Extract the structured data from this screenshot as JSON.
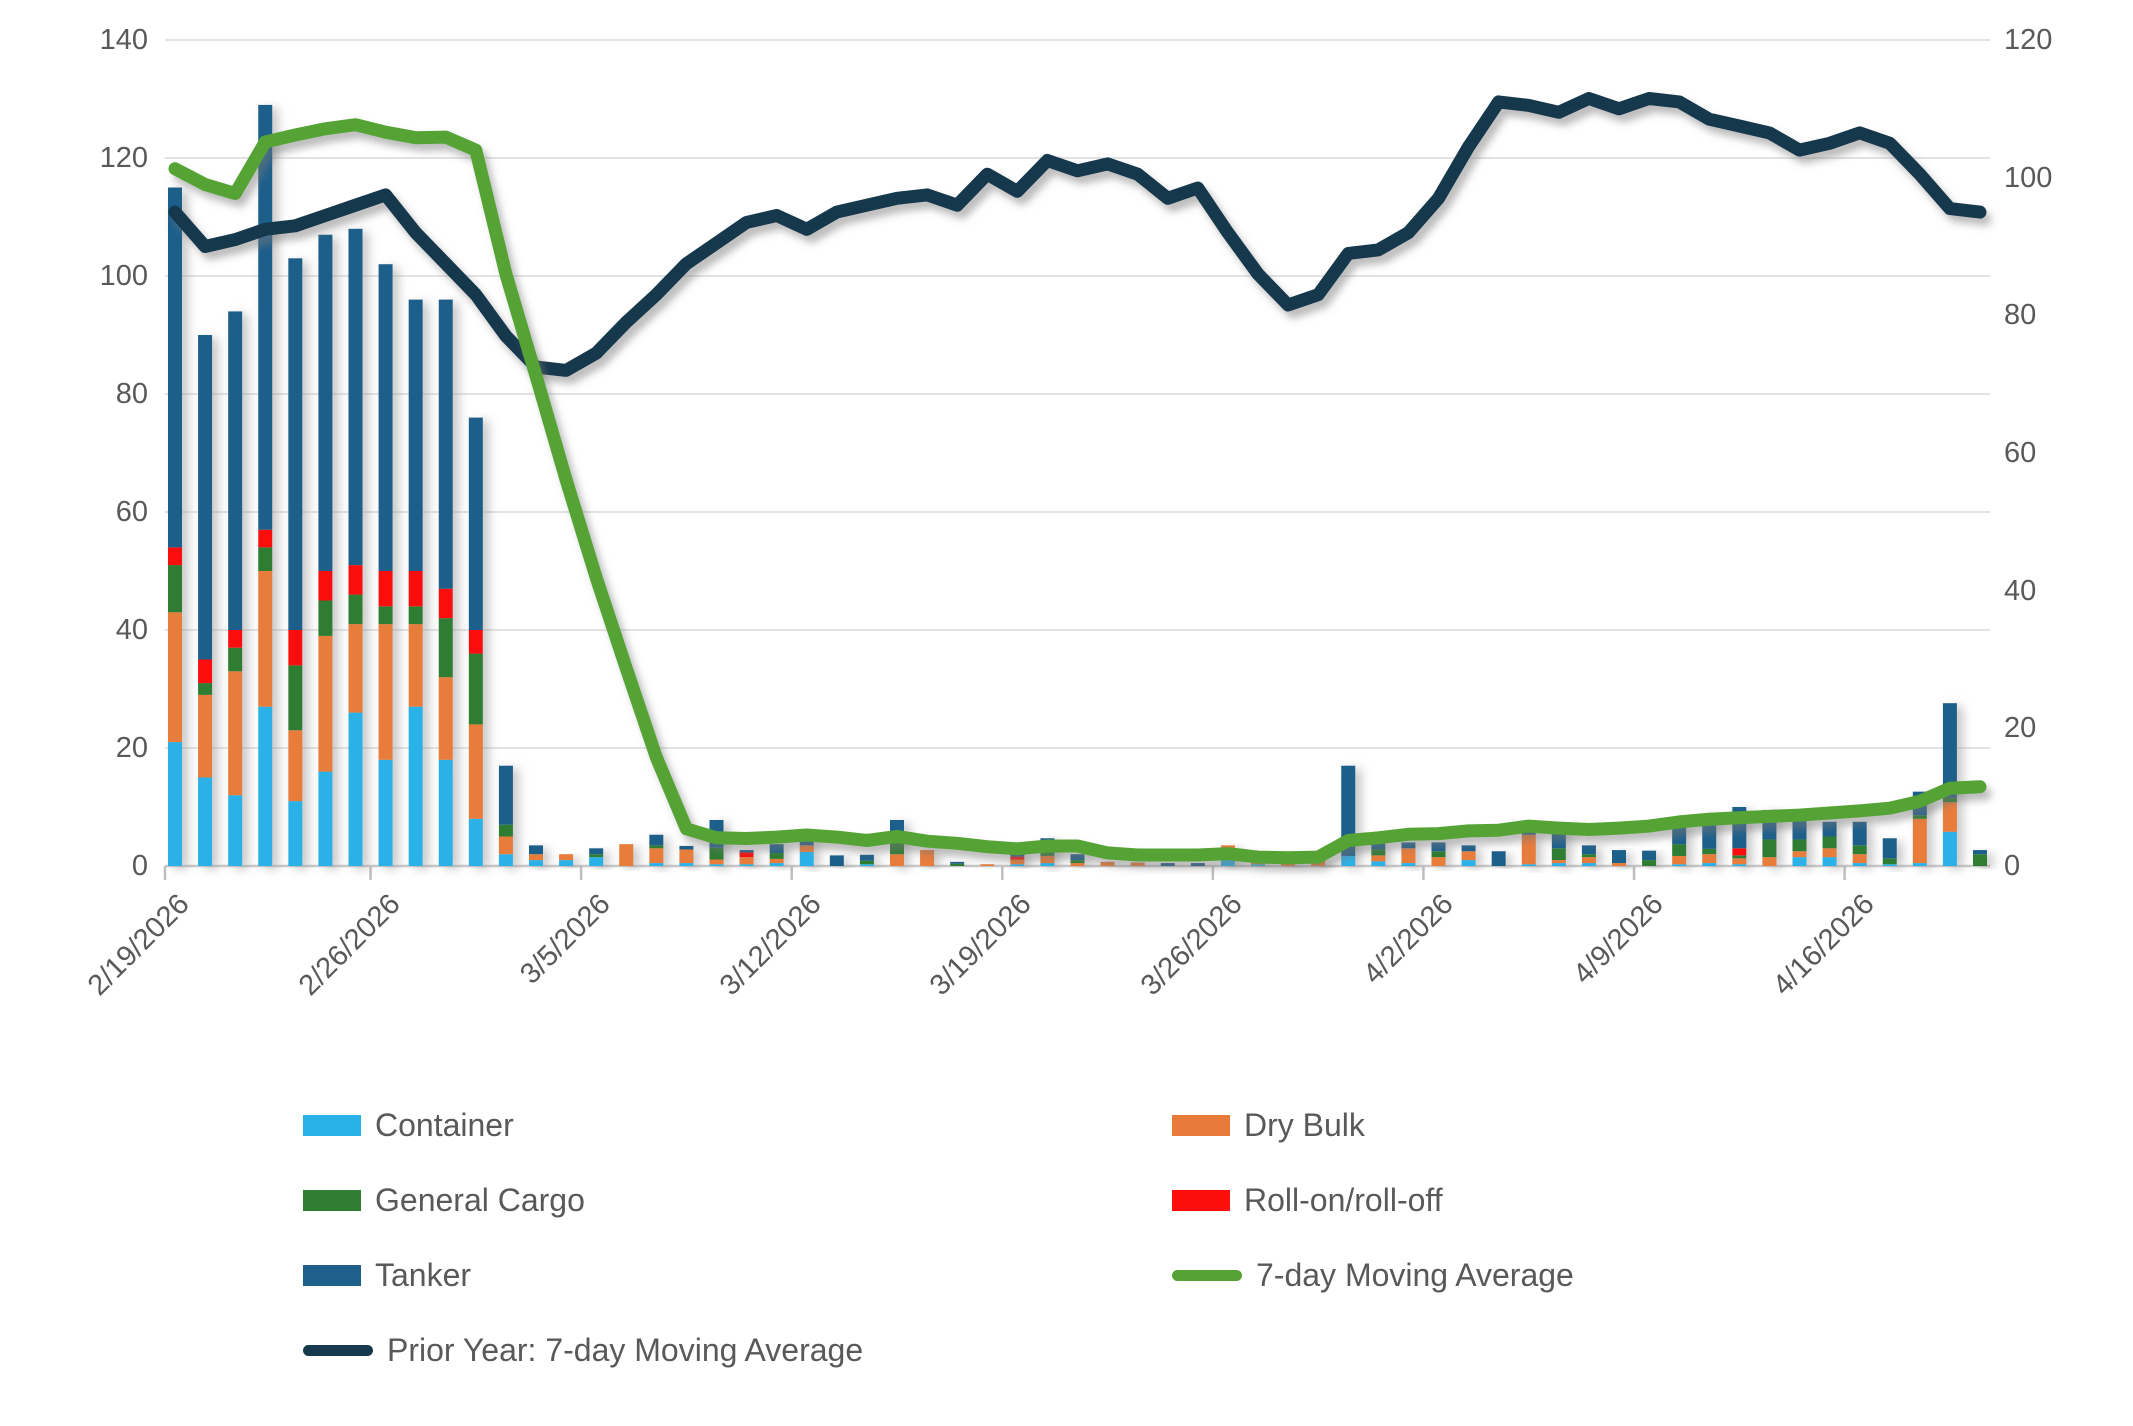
{
  "chart_data": {
    "type": "bar",
    "subtype": "stacked-column-with-lines",
    "title": "",
    "x_dates": [
      "2/19/2026",
      "2/20/2026",
      "2/21/2026",
      "2/22/2026",
      "2/23/2026",
      "2/24/2026",
      "2/25/2026",
      "2/26/2026",
      "2/27/2026",
      "2/28/2026",
      "3/1/2026",
      "3/2/2026",
      "3/3/2026",
      "3/4/2026",
      "3/5/2026",
      "3/6/2026",
      "3/7/2026",
      "3/8/2026",
      "3/9/2026",
      "3/10/2026",
      "3/11/2026",
      "3/12/2026",
      "3/13/2026",
      "3/14/2026",
      "3/15/2026",
      "3/16/2026",
      "3/17/2026",
      "3/18/2026",
      "3/19/2026",
      "3/20/2026",
      "3/21/2026",
      "3/22/2026",
      "3/23/2026",
      "3/24/2026",
      "3/25/2026",
      "3/26/2026",
      "3/27/2026",
      "3/28/2026",
      "3/29/2026",
      "3/30/2026",
      "3/31/2026",
      "4/1/2026",
      "4/2/2026",
      "4/3/2026",
      "4/4/2026",
      "4/5/2026",
      "4/6/2026",
      "4/7/2026",
      "4/8/2026",
      "4/9/2026",
      "4/10/2026",
      "4/11/2026",
      "4/12/2026",
      "4/13/2026",
      "4/14/2026",
      "4/15/2026",
      "4/16/2026",
      "4/17/2026",
      "4/18/2026",
      "4/19/2026",
      "4/20/2026"
    ],
    "x_tick_labels": [
      "2/19/2026",
      "2/26/2026",
      "3/5/2026",
      "3/12/2026",
      "3/19/2026",
      "3/26/2026",
      "4/2/2026",
      "4/9/2026",
      "4/16/2026"
    ],
    "x_tick_every": 7,
    "left_axis": {
      "min": 0,
      "max": 140,
      "ticks": [
        0,
        20,
        40,
        60,
        80,
        100,
        120,
        140
      ]
    },
    "right_axis": {
      "min": 0,
      "max": 120,
      "ticks": [
        0,
        20,
        40,
        60,
        80,
        100,
        120
      ]
    },
    "grid_on": true,
    "legend_position": "bottom",
    "bar_series": [
      {
        "name": "Container",
        "color": "#29B2E8",
        "values": [
          21,
          15,
          12,
          27,
          11,
          16,
          26,
          18,
          27,
          18,
          8,
          2,
          1,
          1,
          1.5,
          0,
          0.5,
          0.5,
          0.3,
          0.3,
          0.5,
          2.4,
          0,
          0.3,
          0,
          0,
          0,
          0,
          0.3,
          0.5,
          0,
          0,
          0,
          0,
          0,
          1.5,
          0.3,
          0,
          0,
          1.7,
          0.8,
          0.5,
          0,
          1,
          0,
          0.3,
          0.5,
          0.5,
          0,
          0,
          0.3,
          0.5,
          0.3,
          0,
          1.5,
          1.5,
          0.5,
          0.3,
          0.5,
          5.8,
          0
        ]
      },
      {
        "name": "Dry Bulk",
        "color": "#E87B3A",
        "values": [
          22,
          14,
          21,
          23,
          12,
          23,
          15,
          23,
          14,
          14,
          16,
          3,
          1,
          1,
          0,
          3.7,
          2.5,
          2.3,
          0.8,
          1.2,
          0.7,
          1.1,
          0,
          0,
          2,
          2.7,
          0,
          0.3,
          0.8,
          1.2,
          0.5,
          0.7,
          0.6,
          0,
          0,
          2,
          0.4,
          1.6,
          1,
          0,
          1,
          2.5,
          1.5,
          1.5,
          0,
          5,
          0.5,
          1,
          0.5,
          0,
          1.4,
          1.5,
          1,
          1.5,
          1,
          1.5,
          1.5,
          0,
          7.5,
          5,
          0
        ]
      },
      {
        "name": "General Cargo",
        "color": "#2E7D33",
        "values": [
          8,
          2,
          4,
          4,
          11,
          6,
          5,
          3,
          3,
          10,
          12,
          2,
          0,
          0,
          0.5,
          0,
          0.5,
          0,
          2,
          0,
          1,
          0,
          0,
          0.6,
          2.3,
          0,
          0.4,
          0,
          0,
          1.5,
          0.5,
          0,
          0,
          0,
          0,
          0,
          0,
          0,
          0,
          0,
          1,
          0,
          1,
          0,
          0,
          0,
          2,
          0.5,
          0,
          1,
          2,
          0.9,
          0.5,
          3,
          2,
          2,
          1.5,
          1,
          0.6,
          0.8,
          2
        ]
      },
      {
        "name": "Roll-on/roll-off",
        "color": "#FB0E0C",
        "values": [
          3,
          4,
          3,
          3,
          6,
          5,
          5,
          6,
          6,
          5,
          4,
          0,
          0,
          0,
          0,
          0,
          0,
          0,
          0,
          0.8,
          0,
          0,
          0,
          0,
          0,
          0,
          0,
          0,
          0.5,
          0,
          0,
          0,
          0,
          0,
          0,
          0,
          0.3,
          0,
          0,
          0,
          0,
          0,
          0,
          0,
          0,
          0,
          0,
          0,
          0,
          0,
          0,
          0,
          1.2,
          0,
          0,
          0,
          0,
          0,
          0,
          0,
          0
        ]
      },
      {
        "name": "Tanker",
        "color": "#1F5F8B",
        "values": [
          61,
          55,
          54,
          72,
          63,
          57,
          57,
          52,
          46,
          49,
          36,
          10,
          1.5,
          0,
          1,
          0,
          1.8,
          0.6,
          4.7,
          0.4,
          1.5,
          1.2,
          1.8,
          1,
          3.5,
          0,
          0.3,
          0,
          0.5,
          1.5,
          1,
          0,
          0,
          0.5,
          0.5,
          0,
          0,
          0,
          0.6,
          15.3,
          1,
          1,
          1.5,
          1,
          2.5,
          0.5,
          4,
          1.5,
          2.2,
          1.6,
          3.5,
          6,
          7,
          5,
          3.5,
          2.5,
          4,
          3.4,
          4,
          16,
          0.7
        ]
      }
    ],
    "line_series": [
      {
        "name": "7-day Moving Average",
        "color": "#56A335",
        "axis": "right",
        "values": [
          101.3,
          99,
          97.7,
          105.2,
          106.2,
          107.1,
          107.7,
          106.6,
          105.8,
          105.9,
          104,
          86,
          71.2,
          56.1,
          41.9,
          28.7,
          15.8,
          5.4,
          4.1,
          4,
          4.2,
          4.5,
          4.2,
          3.7,
          4.3,
          3.6,
          3.3,
          2.8,
          2.5,
          2.9,
          2.9,
          1.9,
          1.6,
          1.6,
          1.6,
          1.8,
          1.3,
          1.2,
          1.3,
          3.7,
          4.1,
          4.6,
          4.7,
          5.1,
          5.2,
          5.8,
          5.5,
          5.3,
          5.5,
          5.8,
          6.4,
          6.8,
          7,
          7.2,
          7.4,
          7.7,
          8,
          8.4,
          9.4,
          11.3,
          11.5
        ]
      },
      {
        "name": "Prior Year: 7-day Moving Average",
        "color": "#16394E",
        "axis": "right",
        "values": [
          95,
          90,
          91,
          92.5,
          93,
          94.5,
          96,
          97.5,
          92,
          87.5,
          83,
          77,
          72.5,
          72,
          74.5,
          79,
          83,
          87.5,
          90.5,
          93.5,
          94.5,
          92.5,
          95,
          96,
          97,
          97.5,
          96,
          100.5,
          98,
          102.5,
          101,
          102,
          100.5,
          97,
          98.5,
          92,
          86,
          81.5,
          83,
          89,
          89.5,
          92,
          97,
          104.5,
          111,
          110.5,
          109.5,
          111.5,
          110,
          111.5,
          111,
          108.5,
          107.5,
          106.5,
          104,
          105,
          106.5,
          105,
          100.5,
          95.5,
          95
        ]
      }
    ],
    "colors": {
      "grid": "#D9D9D9",
      "axis_text": "#595959",
      "axis_line": "#BFBFBF",
      "background": "#FFFFFF"
    }
  }
}
